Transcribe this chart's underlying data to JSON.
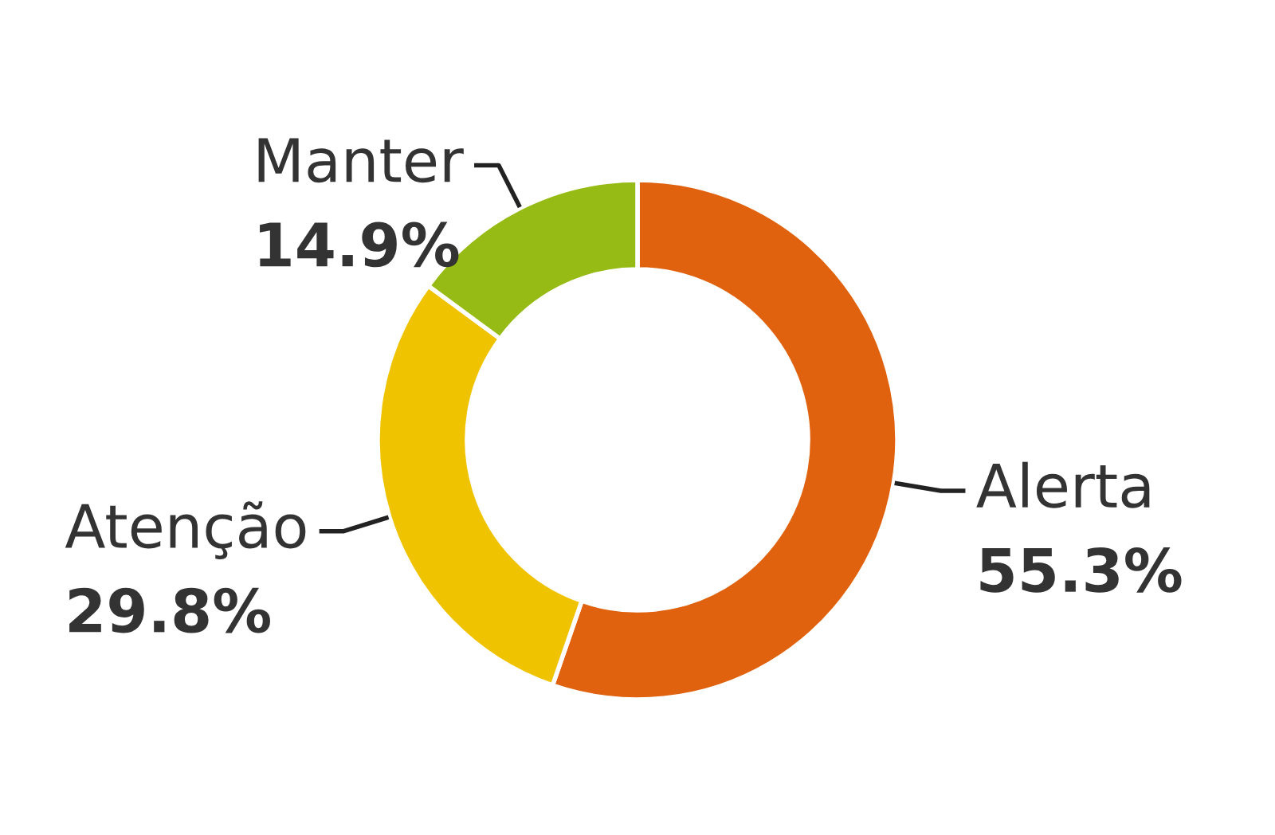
{
  "chart_data": {
    "type": "donut",
    "categories": [
      "Alerta",
      "Atenção",
      "Manter"
    ],
    "values": [
      55.3,
      29.8,
      14.9
    ],
    "value_labels": [
      "55.3%",
      "29.8%",
      "14.9%"
    ],
    "colors": [
      "#e0620e",
      "#f0c300",
      "#96bb14"
    ],
    "legend": false
  }
}
